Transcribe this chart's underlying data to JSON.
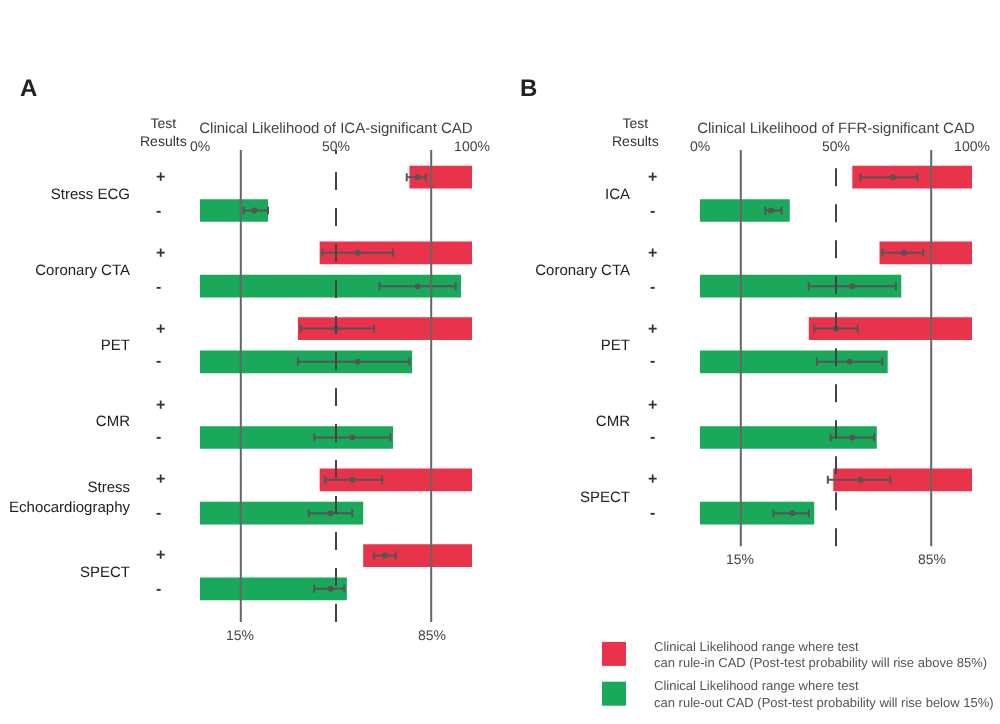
{
  "chart_data": [
    {
      "type": "bar",
      "orientation": "horizontal",
      "title": "A",
      "xlabel": "Clinical Likelihood of ICA-significant CAD",
      "categories": [
        "Stress ECG",
        "Coronary CTA",
        "PET",
        "CMR",
        "Stress\nEchocardiography",
        "SPECT"
      ],
      "xlim": [
        0,
        100
      ],
      "xticks": [
        {
          "value": 0,
          "label": "0%"
        },
        {
          "value": 50,
          "label": "50%"
        },
        {
          "value": 100,
          "label": "100%"
        }
      ],
      "legend": false,
      "marker": "circle",
      "series": [
        {
          "color": "#e8334a",
          "base": [
            77,
            44,
            36,
            null,
            44,
            60
          ],
          "values": [
            23,
            56,
            64,
            null,
            56,
            40
          ]
        },
        {
          "color": "#1aa85a",
          "values": [
            25,
            96,
            78,
            71,
            60,
            54
          ]
        },
        {
          "type": "scatter",
          "color": "#555555",
          "values": [
            80,
            58,
            50,
            null,
            56,
            68
          ],
          "errors": [
            [
              76,
              83
            ],
            [
              45,
              71
            ],
            [
              37,
              64
            ],
            null,
            [
              46,
              67
            ],
            [
              64,
              72
            ]
          ]
        },
        {
          "type": "scatter",
          "color": "#555555",
          "values": [
            20,
            80,
            58,
            56,
            48,
            48
          ],
          "errors": [
            [
              16,
              25
            ],
            [
              66,
              94
            ],
            [
              36,
              77
            ],
            [
              42,
              70
            ],
            [
              40,
              56
            ],
            [
              42,
              53
            ]
          ]
        }
      ],
      "ref_lines": [
        {
          "axis": "x",
          "value": 15,
          "label": "15%",
          "color": "#666666"
        },
        {
          "axis": "x",
          "value": 85,
          "label": "85%",
          "color": "#666666"
        },
        {
          "axis": "x",
          "value": 50,
          "label": null,
          "color": "#444444",
          "line_style": "dashed"
        }
      ],
      "annotations": [
        "Test\nResults",
        "+",
        "-",
        "+",
        "-",
        "+",
        "-",
        "+",
        "-",
        "+",
        "-",
        "+",
        "-"
      ]
    },
    {
      "type": "bar",
      "orientation": "horizontal",
      "title": "B",
      "xlabel": "Clinical Likelihood of FFR-significant CAD",
      "categories": [
        "ICA",
        "Coronary CTA",
        "PET",
        "CMR",
        "SPECT"
      ],
      "xlim": [
        0,
        100
      ],
      "xticks": [
        {
          "value": 0,
          "label": "0%"
        },
        {
          "value": 50,
          "label": "50%"
        },
        {
          "value": 100,
          "label": "100%"
        }
      ],
      "legend": "bottom left",
      "marker": "circle",
      "series": [
        {
          "name": "Clinical Likelihood range where test\ncan rule-in CAD (Post-test probability will rise above 85%)",
          "color": "#e8334a",
          "base": [
            56,
            66,
            40,
            null,
            49
          ],
          "values": [
            44,
            34,
            60,
            null,
            51
          ]
        },
        {
          "name": "Clinical Likelihood range where test\ncan rule-out CAD (Post-test probability will rise below 15%)",
          "color": "#1aa85a",
          "values": [
            33,
            74,
            69,
            65,
            42
          ]
        },
        {
          "type": "scatter",
          "color": "#555555",
          "values": [
            71,
            75,
            50,
            null,
            59
          ],
          "errors": [
            [
              59,
              80
            ],
            [
              67,
              82
            ],
            [
              42,
              58
            ],
            null,
            [
              47,
              70
            ]
          ]
        },
        {
          "type": "scatter",
          "color": "#555555",
          "values": [
            26,
            56,
            55,
            56,
            34
          ],
          "errors": [
            [
              24,
              30
            ],
            [
              40,
              72
            ],
            [
              43,
              67
            ],
            [
              48,
              64
            ],
            [
              27,
              40
            ]
          ]
        }
      ],
      "ref_lines": [
        {
          "axis": "x",
          "value": 15,
          "label": "15%",
          "color": "#666666"
        },
        {
          "axis": "x",
          "value": 85,
          "label": "85%",
          "color": "#666666"
        },
        {
          "axis": "x",
          "value": 50,
          "label": null,
          "color": "#444444",
          "line_style": "dashed"
        }
      ],
      "annotations": [
        "Test\nResults",
        "+",
        "-",
        "+",
        "-",
        "+",
        "-",
        "+",
        "-",
        "+",
        "-"
      ]
    }
  ]
}
